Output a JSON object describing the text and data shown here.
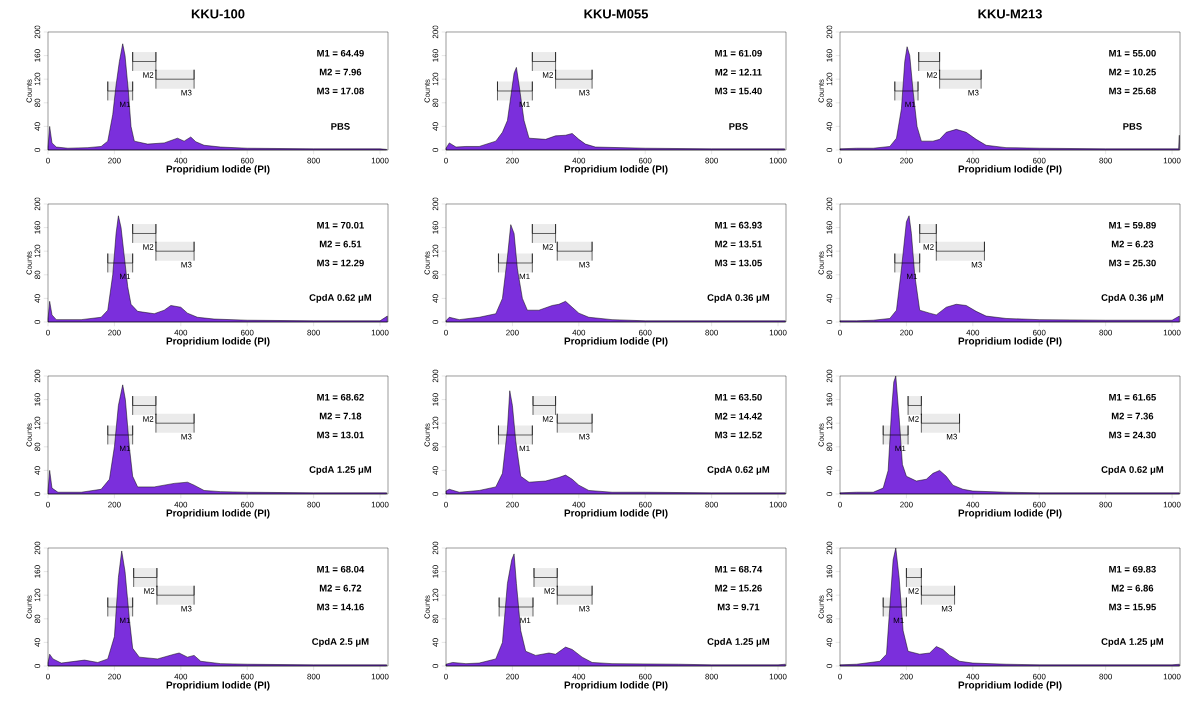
{
  "chart_data": [
    {
      "type": "area",
      "title": "KKU-100",
      "xlabel": "Propridium Iodide (PI)",
      "ylabel": "Counts",
      "color": "#7b2fdc",
      "xlim": [
        0,
        1024
      ],
      "ylim": [
        0,
        200
      ],
      "xticks": [
        0,
        200,
        400,
        600,
        800,
        1000
      ],
      "yticks": [
        0,
        40,
        80,
        120,
        160,
        200
      ],
      "x": [
        0,
        5,
        12,
        25,
        60,
        120,
        160,
        180,
        195,
        205,
        215,
        225,
        232,
        242,
        250,
        260,
        300,
        350,
        390,
        410,
        430,
        445,
        470,
        520,
        600,
        800,
        1000,
        1020
      ],
      "values": [
        5,
        40,
        12,
        5,
        3,
        4,
        6,
        15,
        60,
        110,
        150,
        180,
        160,
        100,
        40,
        15,
        10,
        12,
        20,
        15,
        22,
        14,
        8,
        5,
        3,
        2,
        2,
        1
      ],
      "bands": [
        {
          "axis": "x",
          "from": 180,
          "to": 255,
          "label": "M1"
        },
        {
          "axis": "x",
          "from": 255,
          "to": 325,
          "label": "M2"
        },
        {
          "axis": "x",
          "from": 325,
          "to": 440,
          "label": "M3"
        }
      ],
      "annotations": [
        "M1 = 64.49",
        "M2 = 7.96",
        "M3 = 17.08",
        "PBS"
      ]
    },
    {
      "type": "area",
      "title": "KKU-M055",
      "xlabel": "Propridium Iodide (PI)",
      "ylabel": "Counts",
      "color": "#7b2fdc",
      "xlim": [
        0,
        1024
      ],
      "ylim": [
        0,
        200
      ],
      "xticks": [
        0,
        200,
        400,
        600,
        800,
        1000
      ],
      "yticks": [
        0,
        40,
        80,
        120,
        160,
        200
      ],
      "x": [
        0,
        10,
        30,
        60,
        100,
        150,
        170,
        185,
        195,
        205,
        212,
        220,
        235,
        250,
        300,
        330,
        360,
        380,
        400,
        420,
        450,
        600,
        800,
        1000,
        1020
      ],
      "values": [
        3,
        12,
        5,
        6,
        6,
        15,
        30,
        50,
        90,
        130,
        140,
        110,
        50,
        20,
        18,
        24,
        25,
        28,
        18,
        10,
        5,
        3,
        2,
        2,
        2
      ],
      "bands": [
        {
          "axis": "x",
          "from": 155,
          "to": 260,
          "label": "M1"
        },
        {
          "axis": "x",
          "from": 260,
          "to": 330,
          "label": "M2"
        },
        {
          "axis": "x",
          "from": 330,
          "to": 440,
          "label": "M3"
        }
      ],
      "annotations": [
        "M1 = 61.09",
        "M2 = 12.11",
        "M3 = 15.40",
        "PBS"
      ]
    },
    {
      "type": "area",
      "title": "KKU-M213",
      "xlabel": "Propridium Iodide (PI)",
      "ylabel": "Counts",
      "color": "#7b2fdc",
      "xlim": [
        0,
        1024
      ],
      "ylim": [
        0,
        200
      ],
      "xticks": [
        0,
        200,
        400,
        600,
        800,
        1000
      ],
      "yticks": [
        0,
        40,
        80,
        120,
        160,
        200
      ],
      "x": [
        0,
        50,
        100,
        150,
        170,
        185,
        195,
        202,
        210,
        220,
        232,
        245,
        280,
        300,
        320,
        350,
        380,
        410,
        440,
        500,
        600,
        800,
        1000,
        1020,
        1022
      ],
      "values": [
        2,
        3,
        3,
        6,
        20,
        70,
        150,
        175,
        160,
        100,
        40,
        15,
        15,
        18,
        30,
        35,
        30,
        18,
        8,
        4,
        3,
        2,
        2,
        2,
        25
      ],
      "bands": [
        {
          "axis": "x",
          "from": 165,
          "to": 235,
          "label": "M1"
        },
        {
          "axis": "x",
          "from": 237,
          "to": 300,
          "label": "M2"
        },
        {
          "axis": "x",
          "from": 300,
          "to": 425,
          "label": "M3"
        }
      ],
      "annotations": [
        "M1 = 55.00",
        "M2 = 10.25",
        "M3 = 25.68",
        "PBS"
      ]
    },
    {
      "type": "area",
      "xlabel": "Propridium Iodide (PI)",
      "ylabel": "Counts",
      "color": "#7b2fdc",
      "xlim": [
        0,
        1024
      ],
      "ylim": [
        0,
        200
      ],
      "xticks": [
        0,
        200,
        400,
        600,
        800,
        1000
      ],
      "yticks": [
        0,
        40,
        80,
        120,
        160,
        200
      ],
      "x": [
        0,
        5,
        12,
        25,
        100,
        160,
        180,
        195,
        205,
        212,
        220,
        230,
        240,
        250,
        270,
        320,
        350,
        370,
        400,
        420,
        450,
        500,
        600,
        800,
        1000,
        1022
      ],
      "values": [
        5,
        35,
        12,
        4,
        4,
        8,
        20,
        80,
        150,
        180,
        160,
        110,
        60,
        30,
        18,
        14,
        20,
        28,
        25,
        15,
        8,
        5,
        3,
        2,
        2,
        10
      ],
      "bands": [
        {
          "axis": "x",
          "from": 180,
          "to": 255,
          "label": "M1"
        },
        {
          "axis": "x",
          "from": 255,
          "to": 325,
          "label": "M2"
        },
        {
          "axis": "x",
          "from": 325,
          "to": 440,
          "label": "M3"
        }
      ],
      "annotations": [
        "M1 = 70.01",
        "M2 = 6.51",
        "M3 = 12.29",
        "CpdA 0.62 μM"
      ]
    },
    {
      "type": "area",
      "xlabel": "Propridium Iodide (PI)",
      "ylabel": "Counts",
      "color": "#7b2fdc",
      "xlim": [
        0,
        1024
      ],
      "ylim": [
        0,
        200
      ],
      "xticks": [
        0,
        200,
        400,
        600,
        800,
        1000
      ],
      "yticks": [
        0,
        40,
        80,
        120,
        160,
        200
      ],
      "x": [
        0,
        10,
        40,
        100,
        150,
        170,
        185,
        195,
        205,
        215,
        230,
        245,
        280,
        320,
        340,
        360,
        380,
        400,
        430,
        500,
        600,
        800,
        1000,
        1022
      ],
      "values": [
        2,
        8,
        4,
        8,
        14,
        40,
        110,
        165,
        150,
        90,
        40,
        20,
        20,
        28,
        30,
        35,
        25,
        15,
        8,
        4,
        2,
        2,
        2,
        2
      ],
      "bands": [
        {
          "axis": "x",
          "from": 158,
          "to": 260,
          "label": "M1"
        },
        {
          "axis": "x",
          "from": 260,
          "to": 330,
          "label": "M2"
        },
        {
          "axis": "x",
          "from": 335,
          "to": 440,
          "label": "M3"
        }
      ],
      "annotations": [
        "M1 = 63.93",
        "M2 = 13.51",
        "M3 = 13.05",
        "CpdA 0.36 μM"
      ]
    },
    {
      "type": "area",
      "xlabel": "Propridium Iodide (PI)",
      "ylabel": "Counts",
      "color": "#7b2fdc",
      "xlim": [
        0,
        1024
      ],
      "ylim": [
        0,
        200
      ],
      "xticks": [
        0,
        200,
        400,
        600,
        800,
        1000
      ],
      "yticks": [
        0,
        40,
        80,
        120,
        160,
        200
      ],
      "x": [
        0,
        50,
        100,
        150,
        170,
        185,
        200,
        208,
        215,
        225,
        240,
        270,
        290,
        320,
        350,
        380,
        410,
        440,
        500,
        600,
        800,
        1000,
        1022
      ],
      "values": [
        2,
        2,
        3,
        6,
        20,
        90,
        170,
        180,
        150,
        80,
        20,
        15,
        12,
        25,
        30,
        28,
        18,
        10,
        6,
        4,
        3,
        3,
        10
      ],
      "bands": [
        {
          "axis": "x",
          "from": 165,
          "to": 240,
          "label": "M1"
        },
        {
          "axis": "x",
          "from": 240,
          "to": 290,
          "label": "M2"
        },
        {
          "axis": "x",
          "from": 290,
          "to": 435,
          "label": "M3"
        }
      ],
      "annotations": [
        "M1 = 59.89",
        "M2 = 6.23",
        "M3 = 25.30",
        "CpdA 0.36 μM"
      ]
    },
    {
      "type": "area",
      "xlabel": "Propridium Iodide (PI)",
      "ylabel": "Counts",
      "color": "#7b2fdc",
      "xlim": [
        0,
        1024
      ],
      "ylim": [
        0,
        200
      ],
      "xticks": [
        0,
        200,
        400,
        600,
        800,
        1000
      ],
      "yticks": [
        0,
        40,
        80,
        120,
        160,
        200
      ],
      "x": [
        0,
        5,
        12,
        30,
        100,
        160,
        185,
        200,
        212,
        225,
        233,
        245,
        255,
        270,
        320,
        380,
        420,
        440,
        470,
        520,
        600,
        800,
        1000,
        1020
      ],
      "values": [
        5,
        40,
        10,
        3,
        3,
        8,
        25,
        80,
        150,
        185,
        160,
        80,
        30,
        12,
        12,
        18,
        20,
        15,
        6,
        4,
        3,
        2,
        2,
        2
      ],
      "bands": [
        {
          "axis": "x",
          "from": 180,
          "to": 255,
          "label": "M1"
        },
        {
          "axis": "x",
          "from": 255,
          "to": 325,
          "label": "M2"
        },
        {
          "axis": "x",
          "from": 325,
          "to": 440,
          "label": "M3"
        }
      ],
      "annotations": [
        "M1 = 68.62",
        "M2 = 7.18",
        "M3 = 13.01",
        "CpdA 1.25 μM"
      ]
    },
    {
      "type": "area",
      "xlabel": "Propridium Iodide (PI)",
      "ylabel": "Counts",
      "color": "#7b2fdc",
      "xlim": [
        0,
        1024
      ],
      "ylim": [
        0,
        200
      ],
      "xticks": [
        0,
        200,
        400,
        600,
        800,
        1000
      ],
      "yticks": [
        0,
        40,
        80,
        120,
        160,
        200
      ],
      "x": [
        0,
        10,
        40,
        100,
        150,
        170,
        185,
        192,
        200,
        210,
        225,
        250,
        300,
        340,
        360,
        380,
        400,
        430,
        500,
        600,
        800,
        1000,
        1022
      ],
      "values": [
        5,
        8,
        3,
        6,
        12,
        35,
        110,
        175,
        150,
        90,
        30,
        20,
        22,
        28,
        32,
        25,
        15,
        6,
        3,
        3,
        2,
        2,
        2
      ],
      "bands": [
        {
          "axis": "x",
          "from": 158,
          "to": 260,
          "label": "M1"
        },
        {
          "axis": "x",
          "from": 262,
          "to": 330,
          "label": "M2"
        },
        {
          "axis": "x",
          "from": 335,
          "to": 440,
          "label": "M3"
        }
      ],
      "annotations": [
        "M1 = 63.50",
        "M2 = 14.42",
        "M3 = 12.52",
        "CpdA 0.62 μM"
      ]
    },
    {
      "type": "area",
      "xlabel": "Propridium Iodide (PI)",
      "ylabel": "Counts",
      "color": "#7b2fdc",
      "xlim": [
        0,
        1024
      ],
      "ylim": [
        0,
        200
      ],
      "xticks": [
        0,
        200,
        400,
        600,
        800,
        1000
      ],
      "yticks": [
        0,
        40,
        80,
        120,
        160,
        200
      ],
      "x": [
        0,
        50,
        100,
        130,
        145,
        155,
        162,
        168,
        178,
        188,
        200,
        230,
        260,
        280,
        300,
        320,
        340,
        370,
        400,
        500,
        600,
        800,
        1000,
        1022
      ],
      "values": [
        2,
        3,
        3,
        10,
        40,
        140,
        190,
        200,
        130,
        50,
        30,
        22,
        25,
        35,
        40,
        30,
        15,
        8,
        5,
        3,
        2,
        2,
        2,
        2
      ],
      "bands": [
        {
          "axis": "x",
          "from": 130,
          "to": 205,
          "label": "M1"
        },
        {
          "axis": "x",
          "from": 205,
          "to": 245,
          "label": "M2"
        },
        {
          "axis": "x",
          "from": 245,
          "to": 360,
          "label": "M3"
        }
      ],
      "annotations": [
        "M1 = 61.65",
        "M2 = 7.36",
        "M3 = 24.30",
        "CpdA 0.62 μM"
      ]
    },
    {
      "type": "area",
      "xlabel": "Propridium Iodide (PI)",
      "ylabel": "Counts",
      "color": "#7b2fdc",
      "xlim": [
        0,
        1024
      ],
      "ylim": [
        0,
        200
      ],
      "xticks": [
        0,
        200,
        400,
        600,
        800,
        1000
      ],
      "yticks": [
        0,
        40,
        80,
        120,
        160,
        200
      ],
      "x": [
        0,
        5,
        15,
        40,
        110,
        150,
        180,
        200,
        212,
        222,
        232,
        245,
        255,
        275,
        330,
        380,
        395,
        420,
        440,
        460,
        520,
        600,
        800,
        1000,
        1020
      ],
      "values": [
        5,
        20,
        12,
        5,
        10,
        6,
        12,
        50,
        150,
        195,
        160,
        80,
        30,
        15,
        12,
        20,
        22,
        15,
        18,
        8,
        4,
        3,
        2,
        2,
        2
      ],
      "bands": [
        {
          "axis": "x",
          "from": 180,
          "to": 255,
          "label": "M1"
        },
        {
          "axis": "x",
          "from": 258,
          "to": 328,
          "label": "M2"
        },
        {
          "axis": "x",
          "from": 328,
          "to": 440,
          "label": "M3"
        }
      ],
      "annotations": [
        "M1 = 68.04",
        "M2 = 6.72",
        "M3 = 14.16",
        "CpdA 2.5 μM"
      ]
    },
    {
      "type": "area",
      "xlabel": "Propridium Iodide (PI)",
      "ylabel": "Counts",
      "color": "#7b2fdc",
      "xlim": [
        0,
        1024
      ],
      "ylim": [
        0,
        200
      ],
      "xticks": [
        0,
        200,
        400,
        600,
        800,
        1000
      ],
      "yticks": [
        0,
        40,
        80,
        120,
        160,
        200
      ],
      "x": [
        0,
        20,
        60,
        100,
        150,
        170,
        185,
        198,
        205,
        212,
        225,
        240,
        270,
        310,
        330,
        360,
        380,
        410,
        440,
        500,
        700,
        800,
        1000,
        1022
      ],
      "values": [
        3,
        6,
        4,
        5,
        12,
        40,
        140,
        180,
        190,
        140,
        60,
        25,
        18,
        22,
        20,
        32,
        28,
        15,
        6,
        4,
        3,
        2,
        2,
        3
      ],
      "bands": [
        {
          "axis": "x",
          "from": 160,
          "to": 262,
          "label": "M1"
        },
        {
          "axis": "x",
          "from": 265,
          "to": 335,
          "label": "M2"
        },
        {
          "axis": "x",
          "from": 335,
          "to": 440,
          "label": "M3"
        }
      ],
      "annotations": [
        "M1 = 68.74",
        "M2 = 15.26",
        "M3 = 9.71",
        "CpdA 1.25 μM"
      ]
    },
    {
      "type": "area",
      "xlabel": "Propridium Iodide (PI)",
      "ylabel": "Counts",
      "color": "#7b2fdc",
      "xlim": [
        0,
        1024
      ],
      "ylim": [
        0,
        200
      ],
      "xticks": [
        0,
        200,
        400,
        600,
        800,
        1000
      ],
      "yticks": [
        0,
        40,
        80,
        120,
        160,
        200
      ],
      "x": [
        0,
        50,
        120,
        140,
        150,
        160,
        168,
        178,
        190,
        205,
        240,
        270,
        290,
        310,
        330,
        360,
        400,
        500,
        600,
        800,
        1000,
        1022
      ],
      "values": [
        2,
        3,
        8,
        20,
        100,
        180,
        200,
        150,
        60,
        25,
        20,
        22,
        33,
        28,
        18,
        8,
        5,
        3,
        2,
        2,
        2,
        3
      ],
      "bands": [
        {
          "axis": "x",
          "from": 130,
          "to": 200,
          "label": "M1"
        },
        {
          "axis": "x",
          "from": 200,
          "to": 245,
          "label": "M2"
        },
        {
          "axis": "x",
          "from": 245,
          "to": 345,
          "label": "M3"
        }
      ],
      "annotations": [
        "M1 = 69.83",
        "M2 = 6.86",
        "M3 = 15.95",
        "CpdA 1.25 μM"
      ]
    }
  ]
}
